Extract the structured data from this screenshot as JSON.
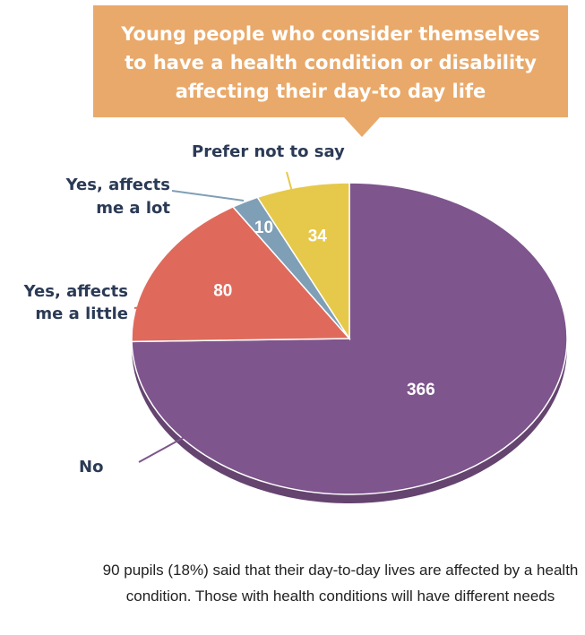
{
  "chart_data": {
    "type": "pie",
    "title": "Young people who consider themselves\nto have a health condition or disability\naffecting their day-to  day life",
    "slices": [
      {
        "label": "No",
        "value": 366,
        "color": "#7e558c"
      },
      {
        "label": "Yes, affects me a little",
        "value": 80,
        "color": "#df6a5c"
      },
      {
        "label": "Yes, affects me a lot",
        "value": 10,
        "color": "#7f9fb6"
      },
      {
        "label": "Prefer not to say",
        "value": 34,
        "color": "#e6c94b"
      }
    ]
  },
  "labels": {
    "no": "No",
    "little_1": "Yes, affects",
    "little_2": "me a little",
    "lot_1": "Yes, affects",
    "lot_2": "me a lot",
    "prefer": "Prefer not to say"
  },
  "caption": "90 pupils (18%) said that their day-to-day lives are affected by a health condition. Those with health conditions will have different needs"
}
